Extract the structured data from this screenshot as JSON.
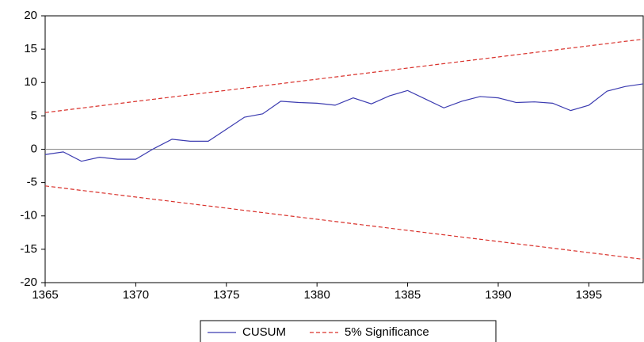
{
  "chart_data": {
    "type": "line",
    "x": [
      1365,
      1366,
      1367,
      1368,
      1369,
      1370,
      1371,
      1372,
      1373,
      1374,
      1375,
      1376,
      1377,
      1378,
      1379,
      1380,
      1381,
      1382,
      1383,
      1384,
      1385,
      1386,
      1387,
      1388,
      1389,
      1390,
      1391,
      1392,
      1393,
      1394,
      1395,
      1396,
      1397,
      1398
    ],
    "series": [
      {
        "name": "CUSUM",
        "color": "#3b3bb0",
        "dash": false,
        "values": [
          -0.8,
          -0.4,
          -1.8,
          -1.2,
          -1.5,
          -1.5,
          0.1,
          1.5,
          1.2,
          1.2,
          3.0,
          4.8,
          5.3,
          7.2,
          7.0,
          6.9,
          6.6,
          7.7,
          6.8,
          8.0,
          8.8,
          7.5,
          6.2,
          7.2,
          7.9,
          7.7,
          7.0,
          7.1,
          6.9,
          5.8,
          6.6,
          8.7,
          9.4,
          9.8
        ]
      },
      {
        "name": "5% Significance",
        "color": "#d9312b",
        "dash": true,
        "values": [
          5.5,
          5.83,
          6.17,
          6.5,
          6.83,
          7.17,
          7.5,
          7.83,
          8.17,
          8.5,
          8.83,
          9.17,
          9.5,
          9.83,
          10.17,
          10.5,
          10.83,
          11.17,
          11.5,
          11.83,
          12.17,
          12.5,
          12.83,
          13.17,
          13.5,
          13.83,
          14.17,
          14.5,
          14.83,
          15.17,
          15.5,
          15.83,
          16.17,
          16.5
        ],
        "lower": [
          -5.5,
          -5.83,
          -6.17,
          -6.5,
          -6.83,
          -7.17,
          -7.5,
          -7.83,
          -8.17,
          -8.5,
          -8.83,
          -9.17,
          -9.5,
          -9.83,
          -10.17,
          -10.5,
          -10.83,
          -11.17,
          -11.5,
          -11.83,
          -12.17,
          -12.5,
          -12.83,
          -13.17,
          -13.5,
          -13.83,
          -14.17,
          -14.5,
          -14.83,
          -15.17,
          -15.5,
          -15.83,
          -16.17,
          -16.5
        ]
      }
    ],
    "xlim": [
      1365,
      1398
    ],
    "xticks": [
      1365,
      1370,
      1375,
      1380,
      1385,
      1390,
      1395
    ],
    "ylim": [
      -20,
      20
    ],
    "yticks": [
      -20,
      -15,
      -10,
      -5,
      0,
      5,
      10,
      15,
      20
    ],
    "zero_line": true,
    "legend": "bottom"
  }
}
